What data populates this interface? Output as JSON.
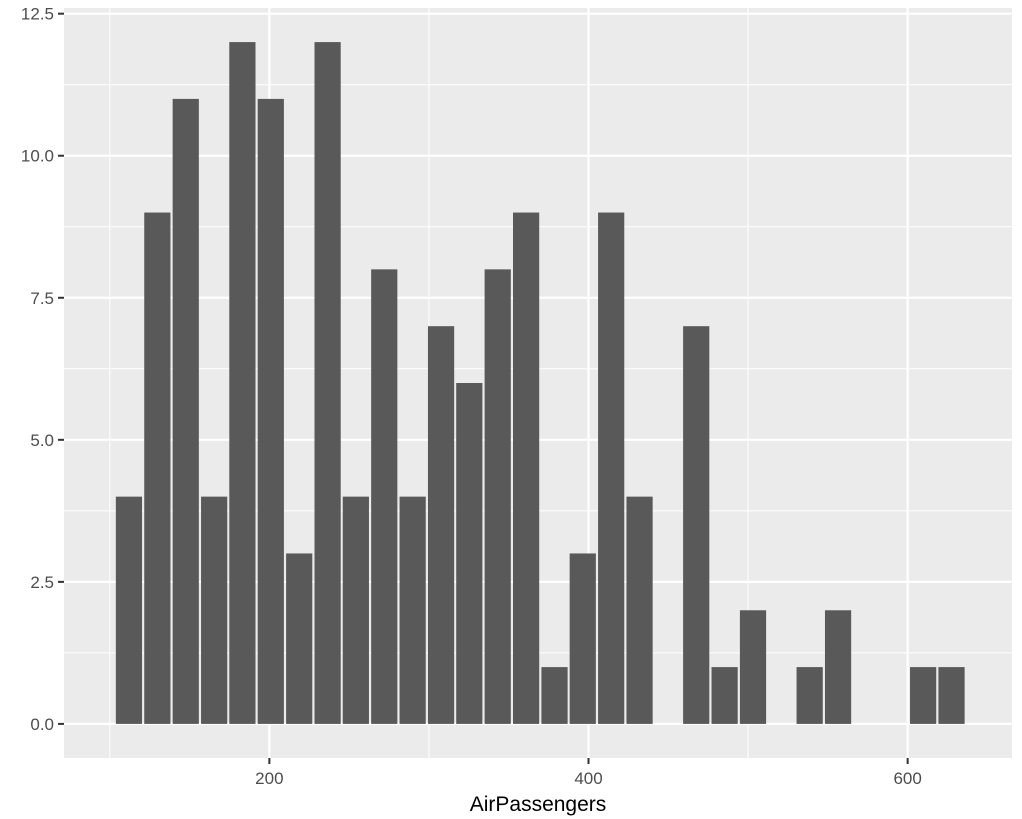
{
  "chart_data": {
    "type": "bar",
    "xlabel": "AirPassengers",
    "ylabel": "",
    "xlim": [
      71.3,
      665.4
    ],
    "ylim": [
      -0.6,
      12.6
    ],
    "x_ticks": [
      200,
      400,
      600
    ],
    "x_tick_labels": [
      "200",
      "400",
      "600"
    ],
    "y_ticks": [
      0,
      2.5,
      5,
      7.5,
      10,
      12.5
    ],
    "y_tick_labels": [
      "0.0",
      "2.5",
      "5.0",
      "7.5",
      "10.0",
      "12.5"
    ],
    "bin_width": 17.8,
    "x": [
      112,
      129.8,
      147.6,
      165.4,
      183.1,
      200.9,
      218.7,
      236.5,
      254.2,
      272,
      289.8,
      307.6,
      325.3,
      343.1,
      360.9,
      378.7,
      396.4,
      414.2,
      432,
      449.8,
      467.5,
      485.3,
      503.1,
      520.9,
      538.6,
      556.4,
      574.2,
      592,
      609.7,
      627.5
    ],
    "values": [
      4,
      9,
      11,
      4,
      12,
      11,
      3,
      12,
      4,
      8,
      4,
      7,
      6,
      8,
      9,
      1,
      3,
      9,
      4,
      0,
      7,
      1,
      2,
      0,
      1,
      2,
      0,
      0,
      1,
      1
    ],
    "grid": true,
    "legend": "none",
    "colors": {
      "panel": "#ebebeb",
      "grid_major": "#ffffff",
      "bar": "#595959",
      "tick": "#333333"
    }
  }
}
